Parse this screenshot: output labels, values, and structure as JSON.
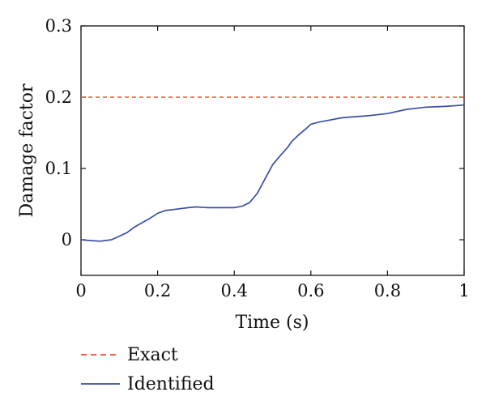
{
  "chart_data": {
    "type": "line",
    "xlabel": "Time (s)",
    "ylabel": "Damage factor",
    "xlim": [
      0,
      1
    ],
    "ylim": [
      -0.05,
      0.3
    ],
    "x_ticks": [
      "0",
      "0.2",
      "0.4",
      "0.6",
      "0.8",
      "1"
    ],
    "y_ticks": [
      "0",
      "0.1",
      "0.2",
      "0.3"
    ],
    "grid": false,
    "legend_position": "below",
    "series": [
      {
        "name": "Exact",
        "style": "dashed",
        "color": "#e8542a",
        "x": [
          0,
          1
        ],
        "y": [
          0.2,
          0.2
        ]
      },
      {
        "name": "Identified",
        "style": "solid",
        "color": "#3a4fa3",
        "x": [
          0,
          0.02,
          0.05,
          0.08,
          0.1,
          0.12,
          0.14,
          0.16,
          0.18,
          0.2,
          0.22,
          0.25,
          0.28,
          0.3,
          0.33,
          0.36,
          0.4,
          0.42,
          0.44,
          0.46,
          0.48,
          0.5,
          0.52,
          0.54,
          0.55,
          0.57,
          0.59,
          0.6,
          0.62,
          0.65,
          0.68,
          0.7,
          0.75,
          0.8,
          0.85,
          0.9,
          0.95,
          1.0
        ],
        "y": [
          0.0,
          -0.001,
          -0.002,
          0.0,
          0.005,
          0.01,
          0.018,
          0.024,
          0.03,
          0.037,
          0.041,
          0.043,
          0.045,
          0.046,
          0.045,
          0.045,
          0.045,
          0.047,
          0.052,
          0.065,
          0.085,
          0.105,
          0.118,
          0.13,
          0.138,
          0.148,
          0.157,
          0.162,
          0.165,
          0.168,
          0.171,
          0.172,
          0.174,
          0.177,
          0.183,
          0.186,
          0.187,
          0.189
        ]
      }
    ]
  }
}
